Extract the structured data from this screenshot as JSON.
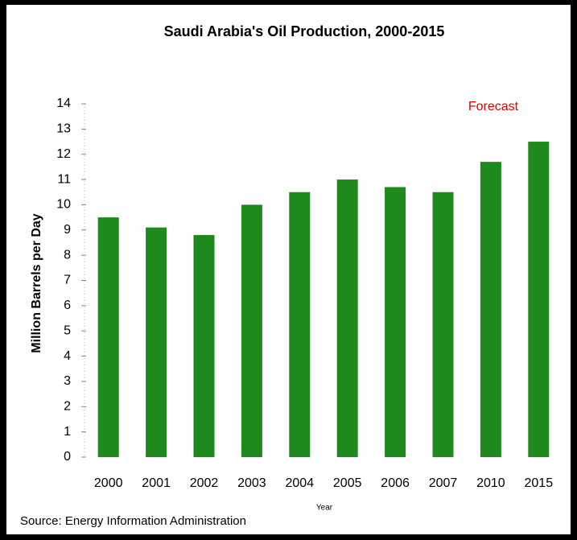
{
  "chart_data": {
    "type": "bar",
    "title": "Saudi Arabia's Oil Production, 2000-2015",
    "ylabel": "Million Barrels per Day",
    "xlabel": "Year",
    "source": "Source: Energy Information Administration",
    "annotation": "Forecast",
    "categories": [
      "2000",
      "2001",
      "2002",
      "2003",
      "2004",
      "2005",
      "2006",
      "2007",
      "2010",
      "2015"
    ],
    "values": [
      9.5,
      9.1,
      8.8,
      10.0,
      10.5,
      11.0,
      10.7,
      10.5,
      11.7,
      12.5
    ],
    "color": "#1e8a1e",
    "ylim": [
      0,
      14
    ],
    "yticks": [
      0,
      1,
      2,
      3,
      4,
      5,
      6,
      7,
      8,
      9,
      10,
      11,
      12,
      13,
      14
    ],
    "grid": false
  }
}
